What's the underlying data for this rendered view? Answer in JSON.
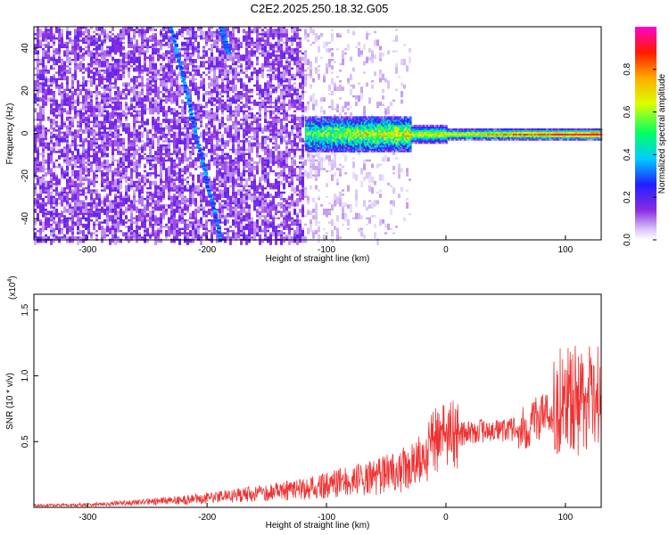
{
  "title": "C2E2.2025.250.18.32.G05",
  "chart_data": [
    {
      "type": "heatmap",
      "xlabel": "Height of straight line (km)",
      "ylabel": "Frequency (Hz)",
      "xlim": [
        -345,
        130
      ],
      "ylim": [
        -50,
        50
      ],
      "xticks": [
        -300,
        -200,
        -100,
        0,
        100
      ],
      "xtick_labels": [
        "-300",
        "-200",
        "-100",
        "0",
        "100"
      ],
      "yticks": [
        -40,
        -20,
        0,
        20,
        40
      ],
      "ytick_labels": [
        "-40",
        "-20",
        "0",
        "20",
        "40"
      ],
      "colorbar": {
        "label": "Normalized spectral amplitude",
        "range": [
          0,
          1
        ],
        "ticks": [
          0.0,
          0.2,
          0.4,
          0.6,
          0.8
        ],
        "tick_labels": [
          "0.0",
          "0.2",
          "0.4",
          "0.6",
          "0.8"
        ]
      },
      "features": {
        "diagonal_streaks": [
          {
            "from": [
              -230,
              50
            ],
            "to": [
              -188,
              -50
            ]
          },
          {
            "from": [
              -188,
              50
            ],
            "to": [
              -182,
              38
            ]
          }
        ],
        "carrier_band": {
          "x_start": -118,
          "x_end": 130,
          "frequency": 0
        }
      }
    },
    {
      "type": "line",
      "xlabel": "Height of straight line (km)",
      "ylabel": "SNR (10 * v/v)",
      "y_scale_label": "(x10",
      "y_scale_exp": "4",
      "y_scale_close": ")",
      "xlim": [
        -345,
        130
      ],
      "ylim": [
        0,
        16200
      ],
      "xticks": [
        -300,
        -200,
        -100,
        0,
        100
      ],
      "xtick_labels": [
        "-300",
        "-200",
        "-100",
        "0",
        "100"
      ],
      "yticks": [
        5000,
        10000,
        15000
      ],
      "ytick_labels": [
        "0.5",
        "1.0",
        "1.5"
      ],
      "color": "#ee3333",
      "trend": {
        "x": [
          -345,
          -300,
          -250,
          -200,
          -150,
          -110,
          -80,
          -60,
          -40,
          -30,
          -20,
          -10,
          0,
          10,
          20,
          40,
          60,
          70,
          80,
          90,
          95,
          100,
          110,
          120,
          130
        ],
        "y": [
          150,
          200,
          400,
          700,
          1100,
          1500,
          2000,
          2300,
          2800,
          3000,
          3800,
          4800,
          5300,
          5500,
          5700,
          5900,
          5900,
          6400,
          7000,
          7300,
          7700,
          7800,
          8000,
          8200,
          8300
        ]
      }
    }
  ]
}
